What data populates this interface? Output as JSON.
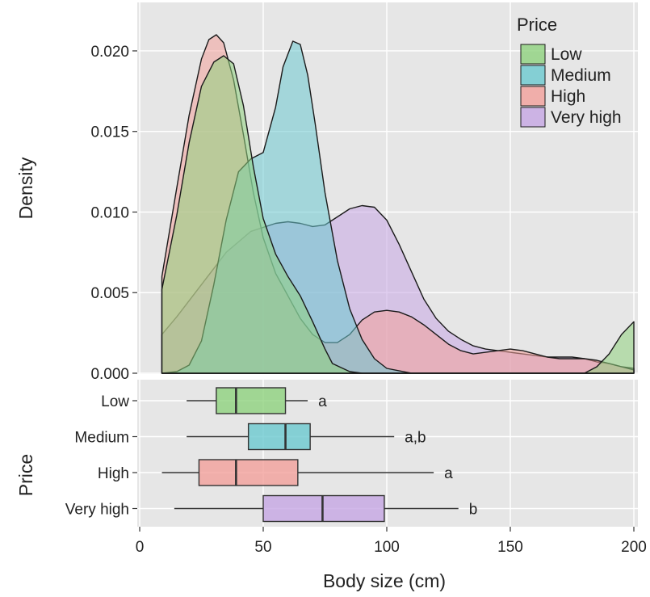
{
  "colors": {
    "low": "#8fd27e",
    "medium": "#6cc9cf",
    "high": "#f3a09b",
    "very_high": "#c6a6e3",
    "panel_bg": "#e6e6e6",
    "grid": "#ffffff",
    "outline": "#1a1a1a"
  },
  "chart_data": [
    {
      "type": "area",
      "panel": "density",
      "ylabel": "Density",
      "xlim": [
        0,
        200
      ],
      "ylim": [
        0,
        0.0225
      ],
      "y_ticks": [
        "0.000",
        "0.005",
        "0.010",
        "0.015",
        "0.020"
      ],
      "grid": true,
      "legend": {
        "title": "Price",
        "placement": "top-right",
        "entries": [
          "Low",
          "Medium",
          "High",
          "Very high"
        ]
      },
      "series": [
        {
          "name": "Very high",
          "color_key": "very_high",
          "x": [
            9,
            15,
            25,
            35,
            45,
            55,
            60,
            65,
            70,
            75,
            80,
            85,
            90,
            95,
            100,
            105,
            110,
            115,
            120,
            125,
            130,
            135,
            140,
            145,
            150,
            155,
            160,
            165,
            170,
            175,
            180,
            185,
            190,
            195,
            200
          ],
          "y": [
            0.0024,
            0.0035,
            0.0055,
            0.0075,
            0.0088,
            0.0093,
            0.0094,
            0.0093,
            0.0091,
            0.0092,
            0.0097,
            0.0102,
            0.0104,
            0.0103,
            0.0095,
            0.008,
            0.0063,
            0.0046,
            0.0034,
            0.0026,
            0.0021,
            0.0017,
            0.0015,
            0.0014,
            0.0013,
            0.0012,
            0.0011,
            0.001,
            0.001,
            0.001,
            0.0009,
            0.0007,
            0.0006,
            0.0004,
            0.0003
          ]
        },
        {
          "name": "High",
          "color_key": "high",
          "x": [
            9,
            15,
            20,
            25,
            28,
            31,
            34,
            38,
            42,
            46,
            50,
            55,
            60,
            65,
            70,
            75,
            80,
            85,
            90,
            95,
            100,
            105,
            110,
            115,
            120,
            125,
            130,
            135,
            140,
            145,
            150,
            155,
            160,
            165,
            170,
            175,
            180,
            185,
            190,
            195,
            200
          ],
          "y": [
            0.006,
            0.0115,
            0.016,
            0.0195,
            0.0207,
            0.021,
            0.0205,
            0.0182,
            0.0148,
            0.0112,
            0.0084,
            0.0062,
            0.0048,
            0.0034,
            0.0024,
            0.0019,
            0.0019,
            0.0024,
            0.0033,
            0.0038,
            0.0039,
            0.0038,
            0.0035,
            0.003,
            0.0024,
            0.0018,
            0.0014,
            0.0012,
            0.0013,
            0.0014,
            0.0015,
            0.0014,
            0.0012,
            0.001,
            0.0009,
            0.0009,
            0.0009,
            0.0008,
            0.0006,
            0.0004,
            0.0002
          ]
        },
        {
          "name": "Medium",
          "color_key": "medium",
          "x": [
            9,
            15,
            20,
            25,
            30,
            35,
            40,
            45,
            50,
            55,
            58,
            62,
            65,
            68,
            71,
            75,
            80,
            85,
            90,
            95,
            100,
            110,
            120,
            140,
            160,
            180,
            200
          ],
          "y": [
            0.0,
            0.0001,
            0.0005,
            0.002,
            0.0055,
            0.0095,
            0.0125,
            0.0133,
            0.0137,
            0.0165,
            0.019,
            0.0206,
            0.0204,
            0.0185,
            0.0155,
            0.0112,
            0.007,
            0.004,
            0.0021,
            0.0009,
            0.0003,
            0.0,
            0.0,
            0.0,
            0.0,
            0.0,
            0.0
          ]
        },
        {
          "name": "Low",
          "color_key": "low",
          "x": [
            9,
            15,
            20,
            25,
            30,
            34,
            38,
            42,
            46,
            50,
            55,
            60,
            65,
            70,
            75,
            78,
            85,
            90,
            100,
            110,
            120,
            130,
            140,
            150,
            160,
            170,
            175,
            180,
            185,
            190,
            195,
            200
          ],
          "y": [
            0.0052,
            0.0098,
            0.0143,
            0.0178,
            0.0193,
            0.0197,
            0.0192,
            0.0166,
            0.0128,
            0.0096,
            0.0074,
            0.006,
            0.0048,
            0.0032,
            0.0015,
            0.0006,
            0.0001,
            0.0,
            0.0,
            0.0,
            0.0,
            0.0,
            0.0,
            0.0,
            0.0,
            0.0,
            0.0,
            0.0,
            0.0004,
            0.0012,
            0.0024,
            0.0032
          ]
        }
      ]
    },
    {
      "type": "box",
      "panel": "boxplot",
      "xlabel": "Body size (cm)",
      "ylabel": "Price",
      "xlim": [
        0,
        200
      ],
      "x_ticks": [
        "0",
        "50",
        "100",
        "150",
        "200"
      ],
      "grid": true,
      "categories": [
        "Low",
        "Medium",
        "High",
        "Very high"
      ],
      "boxes": [
        {
          "category": "Low",
          "color_key": "low",
          "whisker_low": 19,
          "q1": 31,
          "median": 39,
          "q3": 59,
          "whisker_high": 68,
          "letter": "a"
        },
        {
          "category": "Medium",
          "color_key": "medium",
          "whisker_low": 19,
          "q1": 44,
          "median": 59,
          "q3": 69,
          "whisker_high": 103,
          "letter": "a,b"
        },
        {
          "category": "High",
          "color_key": "high",
          "whisker_low": 9,
          "q1": 24,
          "median": 39,
          "q3": 64,
          "whisker_high": 119,
          "letter": "a"
        },
        {
          "category": "Very high",
          "color_key": "very_high",
          "whisker_low": 14,
          "q1": 50,
          "median": 74,
          "q3": 99,
          "whisker_high": 129,
          "letter": "b"
        }
      ]
    }
  ]
}
